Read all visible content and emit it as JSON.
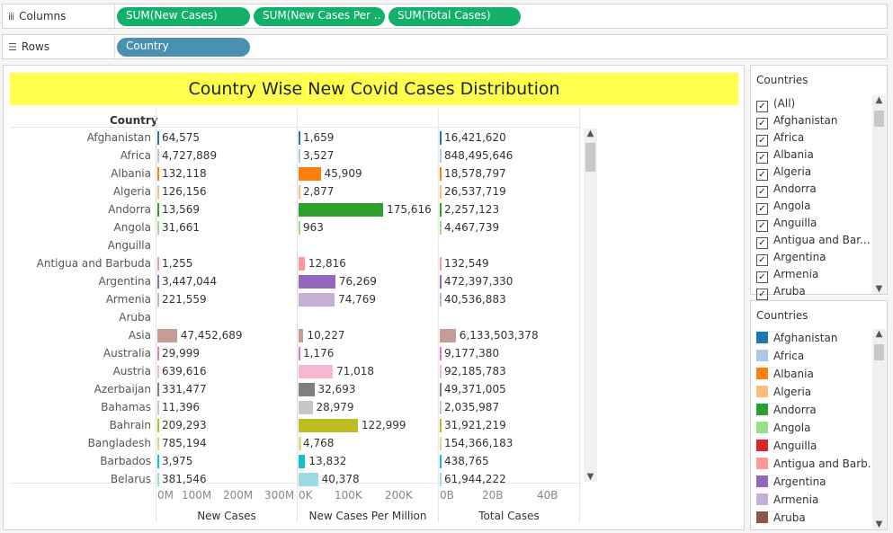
{
  "shelves": {
    "columns_label": "Columns",
    "rows_label": "Rows",
    "column_pills": [
      "SUM(New Cases)",
      "SUM(New Cases Per ..",
      "SUM(Total Cases)"
    ],
    "row_pill": "Country"
  },
  "viz": {
    "title": "Country Wise New Covid Cases Distribution",
    "row_header": "Country",
    "axis_titles": [
      "New Cases",
      "New Cases Per Million",
      "Total Cases"
    ],
    "axis_ticks": {
      "new_cases": [
        "0M",
        "100M",
        "200M",
        "300M"
      ],
      "per_million": [
        "0K",
        "100K",
        "200K"
      ],
      "total_cases": [
        "0B",
        "20B",
        "40B"
      ]
    }
  },
  "colors": {
    "Afghanistan": "#1f77b4",
    "Africa": "#aec7e8",
    "Albania": "#ff7f0e",
    "Algeria": "#ffbb78",
    "Andorra": "#2ca02c",
    "Angola": "#98df8a",
    "Anguilla": "#d62728",
    "Antigua and Barbuda": "#ff9896",
    "Argentina": "#9467bd",
    "Armenia": "#c5b0d5",
    "Aruba": "#8c564b",
    "Asia": "#c49c94",
    "Australia": "#e377c2",
    "Austria": "#f7b6d2",
    "Azerbaijan": "#7f7f7f",
    "Bahamas": "#c7c7c7",
    "Bahrain": "#bcbd22",
    "Bangladesh": "#dbdb8d",
    "Barbados": "#17becf",
    "Belarus": "#9edae5"
  },
  "chart_data": {
    "type": "bar",
    "categories": [
      "Afghanistan",
      "Africa",
      "Albania",
      "Algeria",
      "Andorra",
      "Angola",
      "Anguilla",
      "Antigua and Barbuda",
      "Argentina",
      "Armenia",
      "Aruba",
      "Asia",
      "Australia",
      "Austria",
      "Azerbaijan",
      "Bahamas",
      "Bahrain",
      "Bangladesh",
      "Barbados",
      "Belarus"
    ],
    "series": [
      {
        "name": "New Cases",
        "values": [
          64575,
          4727889,
          132118,
          126156,
          13569,
          31661,
          null,
          1255,
          3447044,
          221559,
          null,
          47452689,
          29999,
          639616,
          331477,
          11396,
          209293,
          785194,
          3975,
          381546
        ],
        "labels": [
          "64,575",
          "4,727,889",
          "132,118",
          "126,156",
          "13,569",
          "31,661",
          "",
          "1,255",
          "3,447,044",
          "221,559",
          "",
          "47,452,689",
          "29,999",
          "639,616",
          "331,477",
          "11,396",
          "209,293",
          "785,194",
          "3,975",
          "381,546"
        ],
        "xlim": [
          0,
          300000000
        ]
      },
      {
        "name": "New Cases Per Million",
        "values": [
          1659,
          3527,
          45909,
          2877,
          175616,
          963,
          null,
          12816,
          76269,
          74769,
          null,
          10227,
          1176,
          71018,
          32693,
          28979,
          122999,
          4768,
          13832,
          40378
        ],
        "labels": [
          "1,659",
          "3,527",
          "45,909",
          "2,877",
          "175,616",
          "963",
          "",
          "12,816",
          "76,269",
          "74,769",
          "",
          "10,227",
          "1,176",
          "71,018",
          "32,693",
          "28,979",
          "122,999",
          "4,768",
          "13,832",
          "40,378"
        ],
        "xlim": [
          0,
          250000
        ]
      },
      {
        "name": "Total Cases",
        "values": [
          16421620,
          848495646,
          18578797,
          26537719,
          2257123,
          4467739,
          null,
          132549,
          472397330,
          40536883,
          null,
          6133503378,
          9177380,
          92185783,
          49371005,
          2035987,
          31921219,
          154366183,
          438765,
          61944222
        ],
        "labels": [
          "16,421,620",
          "848,495,646",
          "18,578,797",
          "26,537,719",
          "2,257,123",
          "4,467,739",
          "",
          "132,549",
          "472,397,330",
          "40,536,883",
          "",
          "6,133,503,378",
          "9,177,380",
          "92,185,783",
          "49,371,005",
          "2,035,987",
          "31,921,219",
          "154,366,183",
          "438,765",
          "61,944,222"
        ],
        "xlim": [
          0,
          50000000000
        ]
      }
    ]
  },
  "filter_panel": {
    "title": "Countries",
    "items": [
      "(All)",
      "Afghanistan",
      "Africa",
      "Albania",
      "Algeria",
      "Andorra",
      "Angola",
      "Anguilla",
      "Antigua and Bar...",
      "Argentina",
      "Armenia",
      "Aruba"
    ]
  },
  "legend_panel": {
    "title": "Countries",
    "items": [
      "Afghanistan",
      "Africa",
      "Albania",
      "Algeria",
      "Andorra",
      "Angola",
      "Anguilla",
      "Antigua and Barb..",
      "Argentina",
      "Armenia",
      "Aruba"
    ]
  }
}
